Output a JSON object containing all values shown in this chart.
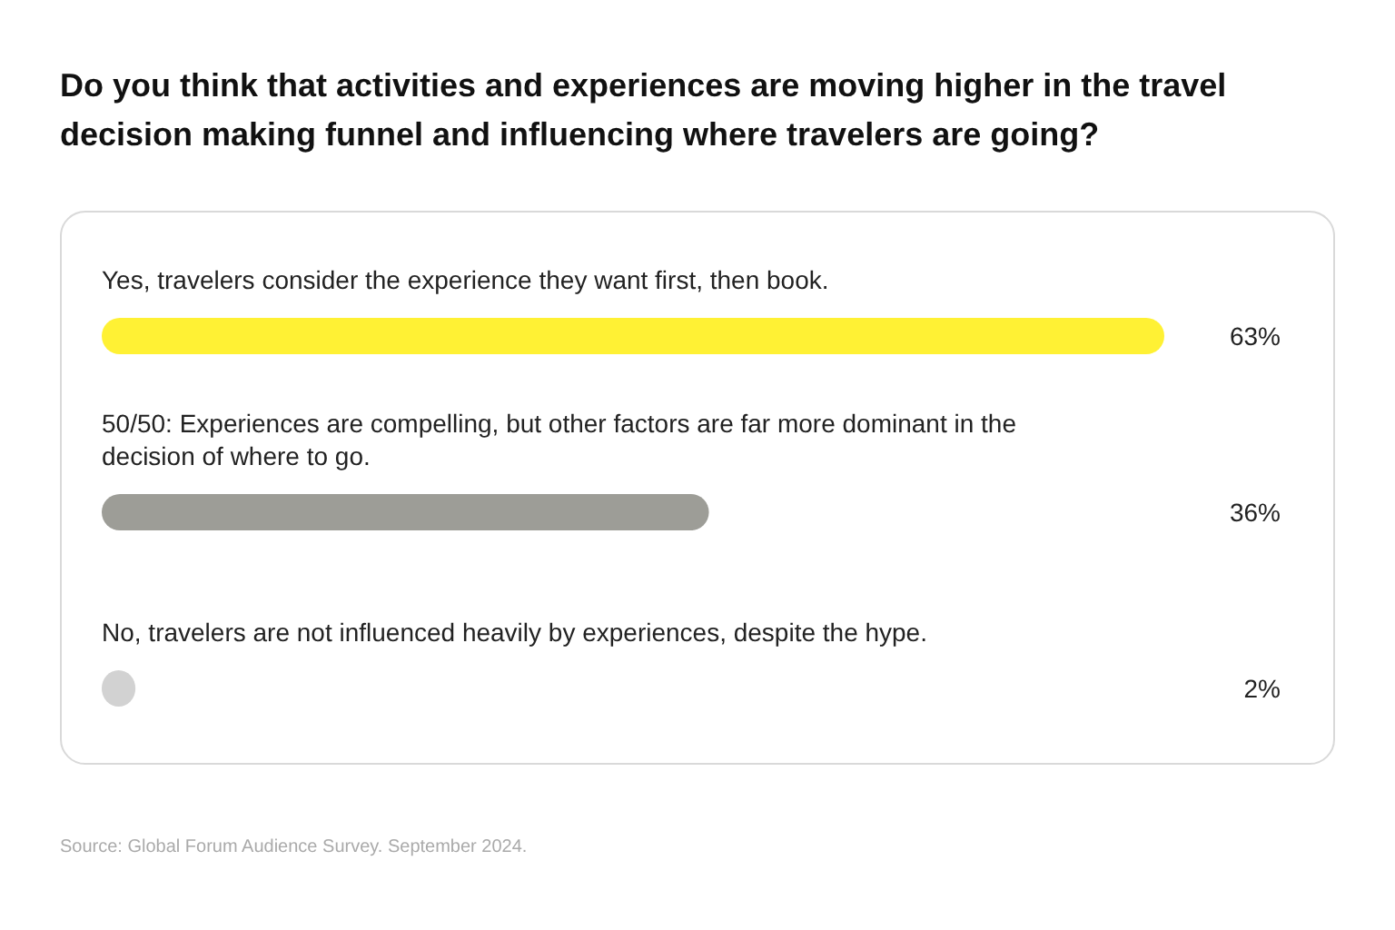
{
  "chart_data": {
    "type": "bar",
    "orientation": "horizontal",
    "title": "Do you think that activities and experiences are moving higher in the travel decision making funnel and influencing where travelers are going?",
    "categories": [
      "Yes, travelers consider the experience they want first, then book.",
      "50/50: Experiences are compelling, but other factors are far more dominant in the decision of where to go.",
      "No, travelers are not influenced heavily by experiences, despite the hype."
    ],
    "values": [
      63,
      36,
      2
    ],
    "value_labels": [
      "63%",
      "36%",
      "2%"
    ],
    "colors": [
      "#fff134",
      "#9d9d97",
      "#d2d2d2"
    ],
    "annotations": [
      "Source: Global Forum Audience Survey. September 2024."
    ]
  }
}
